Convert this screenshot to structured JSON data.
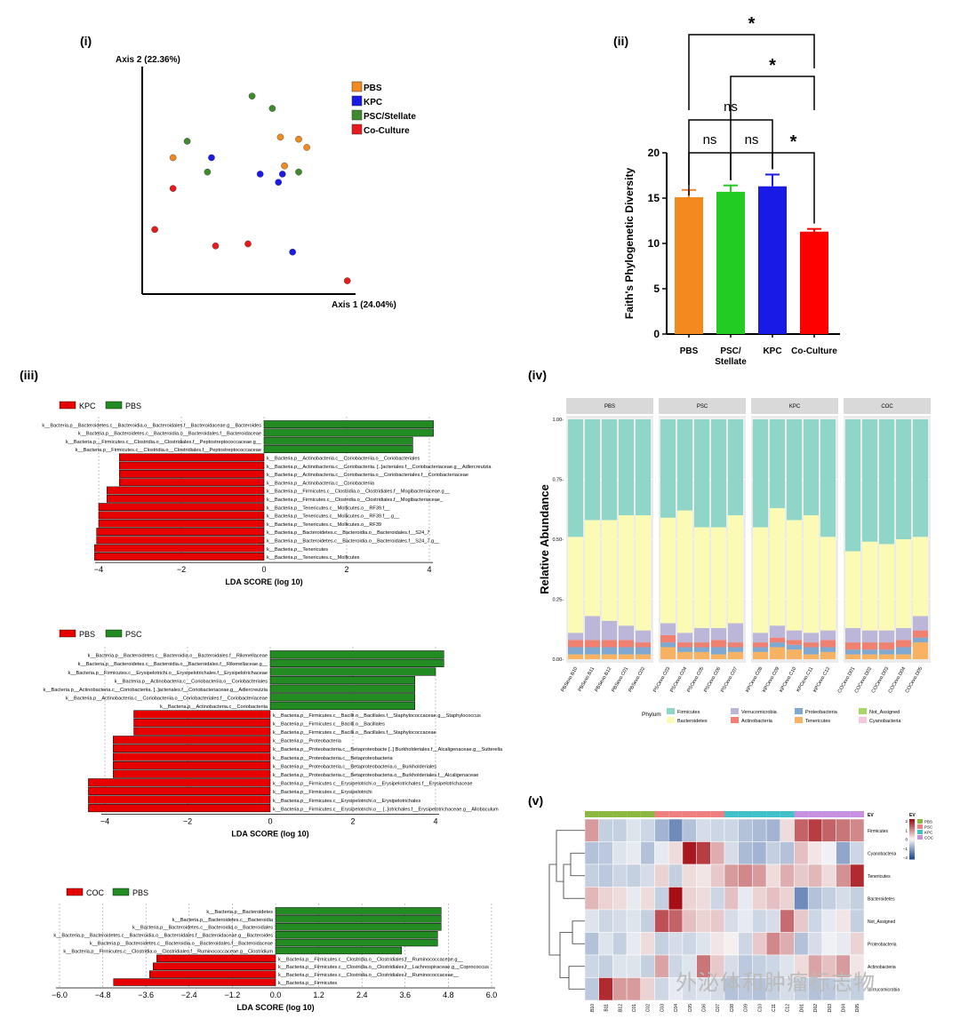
{
  "panels": {
    "i": "(i)",
    "ii": "(ii)",
    "iii": "(iii)",
    "iv": "(iv)",
    "v": "(v)"
  },
  "watermark": "外泌体和肿瘤标志物",
  "colors": {
    "PBS": "#f28a1f",
    "KPC": "#1a1ae6",
    "PSC": "#3f8a2a",
    "COC": "#e81a1a",
    "green": "#228b22",
    "red": "#e60000"
  },
  "chart_data": [
    {
      "id": "pcoa",
      "type": "scatter",
      "xlabel": "Axis 1 (24.04%)",
      "ylabel": "Axis 2 (22.36%)",
      "xlim": [
        0,
        100
      ],
      "ylim": [
        0,
        100
      ],
      "legend": [
        "PBS",
        "KPC",
        "PSC/Stellate",
        "Co-Culture"
      ],
      "legend_position": "right",
      "series": [
        {
          "name": "PBS",
          "points": [
            [
              13,
              63
            ],
            [
              66,
              73
            ],
            [
              75,
              72
            ],
            [
              79,
              68
            ],
            [
              68,
              59
            ]
          ]
        },
        {
          "name": "KPC",
          "points": [
            [
              32,
              63
            ],
            [
              56,
              55
            ],
            [
              65,
              51
            ],
            [
              67,
              55
            ],
            [
              72,
              17
            ]
          ]
        },
        {
          "name": "PSC/Stellate",
          "points": [
            [
              52,
              93
            ],
            [
              62,
              87
            ],
            [
              20,
              71
            ],
            [
              30,
              56
            ],
            [
              75,
              56
            ]
          ]
        },
        {
          "name": "Co-Culture",
          "points": [
            [
              13,
              48
            ],
            [
              4,
              28
            ],
            [
              34,
              20
            ],
            [
              50,
              21
            ],
            [
              99,
              3
            ]
          ]
        }
      ]
    },
    {
      "id": "faith",
      "type": "bar",
      "ylabel": "Faith's Phylogenetic Diversity",
      "ylim": [
        0,
        20
      ],
      "yticks": [
        0,
        5,
        10,
        15,
        20
      ],
      "categories": [
        "PBS",
        "PSC/\nStellate",
        "KPC",
        "Co-Culture"
      ],
      "category_lines": [
        [
          "PBS"
        ],
        [
          "PSC/",
          "Stellate"
        ],
        [
          "KPC"
        ],
        [
          "Co-Culture"
        ]
      ],
      "values": [
        15.1,
        15.7,
        16.3,
        11.3
      ],
      "errors": [
        0.8,
        0.7,
        1.3,
        0.3
      ],
      "significance": [
        {
          "from": 0,
          "to": 1,
          "label": "ns",
          "level": 1
        },
        {
          "from": 1,
          "to": 2,
          "label": "ns",
          "level": 1
        },
        {
          "from": 2,
          "to": 3,
          "label": "*",
          "level": 1
        },
        {
          "from": 0,
          "to": 2,
          "label": "ns",
          "level": 2
        },
        {
          "from": 1,
          "to": 3,
          "label": "*",
          "level": 3
        },
        {
          "from": 0,
          "to": 3,
          "label": "*",
          "level": 4
        }
      ]
    },
    {
      "id": "lefse1",
      "type": "bar",
      "legend": [
        "KPC",
        "PBS"
      ],
      "xlabel": "LDA SCORE (log 10)",
      "xlim": [
        -4.4,
        4.4
      ],
      "xticks": [
        -4,
        -2,
        0,
        2,
        4
      ],
      "bars": [
        {
          "label": "k__Bacteria.p__Bacteroidetes.c__Bacteroidia.o__Bacteroidales.f__Bacteroidaceae.g__Bacteroides",
          "value": 4.1
        },
        {
          "label": "k__Bacteria.p__Bacteroidetes.c__Bacteroidia.o__Bacteroidales.f__Bacteroidaceae",
          "value": 4.1
        },
        {
          "label": "k__Bacteria.p__Firmicutes.c__Clostridia.o__Clostridiales.f__Peptostreptococcaceae.g__",
          "value": 3.6
        },
        {
          "label": "k__Bacteria.p__Firmicutes.c__Clostridia.o__Clostridiales.f__Peptostreptococcaceae",
          "value": 3.6
        },
        {
          "label": "k__Bacteria.p__Actinobacteria.c__Coriobacteriia.o__Coriobacteriales",
          "value": -3.5
        },
        {
          "label": "k__Bacteria.p__Actinobacteria.c__Coriobacteriia. [..]acteriales.f__Coriobacteriaceae.g__Adlercreutzia",
          "value": -3.5
        },
        {
          "label": "k__Bacteria.p__Actinobacteria.c__Coriobacteriia.o__Coriobacteriales.f__Coriobacteriaceae",
          "value": -3.5
        },
        {
          "label": "k__Bacteria.p__Actinobacteria.c__Coriobacteriia",
          "value": -3.5
        },
        {
          "label": "k__Bacteria.p__Firmicutes.c__Clostridia.o__Clostridiales.f__Mogibacteriaceae.g__",
          "value": -3.8
        },
        {
          "label": "k__Bacteria.p__Firmicutes.c__Clostridia.o__Clostridiales.f__Mogibacteriaceae_",
          "value": -3.8
        },
        {
          "label": "k__Bacteria.p__Tenericutes.c__Mollicutes.o__RF39.f__",
          "value": -4.0
        },
        {
          "label": "k__Bacteria.p__Tenericutes.c__Mollicutes.o__RF39.f__.g__",
          "value": -4.0
        },
        {
          "label": "k__Bacteria.p__Tenericutes.c__Mollicutes.o__RF39",
          "value": -4.0
        },
        {
          "label": "k__Bacteria.p__Bacteroidetes.c__Bacteroidia.o__Bacteroidales.f__S24_7",
          "value": -4.05
        },
        {
          "label": "k__Bacteria.p__Bacteroidetes.c__Bacteroidia.o__Bacteroidales.f__S24_7.g__",
          "value": -4.05
        },
        {
          "label": "k__Bacteria.p__Tenericutes",
          "value": -4.1
        },
        {
          "label": "k__Bacteria.p__Tenericutes.c__Mollicutes",
          "value": -4.1
        }
      ]
    },
    {
      "id": "lefse2",
      "type": "bar",
      "legend": [
        "PBS",
        "PSC"
      ],
      "xlabel": "LDA SCORE (log 10)",
      "xlim": [
        -4.6,
        4.6
      ],
      "xticks": [
        -4,
        -2,
        0,
        2,
        4
      ],
      "bars": [
        {
          "label": "k__Bacteria.p__Bacteroidetes.c__Bacteroidia.o__Bacteroidales.f__Rikenellaceae",
          "value": 4.2
        },
        {
          "label": "k__Bacteria.p__Bacteroidetes.c__Bacteroidia.o__Bacteroidales.f__Rikenellaceae.g__",
          "value": 4.2
        },
        {
          "label": "k__Bacteria.p__Firmicutes.c__Erysipelotrichi.o__Erysipelotrichales.f__Erysipelotrichaceae",
          "value": 4.0
        },
        {
          "label": "k__Bacteria.p__Actinobacteria.c__Coriobacteriia.o__Coriobacteriales",
          "value": 3.5
        },
        {
          "label": "k__Bacteria.p__Actinobacteria.c__Coriobacteriia. [..]acteriales.f__Coriobacteriaceae.g__Adlercreutzia",
          "value": 3.5
        },
        {
          "label": "k__Bacteria.p__Actinobacteria.c__Coriobacteriia.o__Coriobacteriales.f__Coriobacteriaceae",
          "value": 3.5
        },
        {
          "label": "k__Bacteria.p__Actinobacteria.c__Coriobacteriia",
          "value": 3.5
        },
        {
          "label": "k__Bacteria.p__Firmicutes.c__Bacilli.o__Bacillales.f__Staphylococcaceae.g__Staphylococcus",
          "value": -3.3
        },
        {
          "label": "k__Bacteria.p__Firmicutes.c__Bacilli.o__Bacillales",
          "value": -3.3
        },
        {
          "label": "k__Bacteria.p__Firmicutes.c__Bacilli.o__Bacillales.f__Staphylococcaceae",
          "value": -3.3
        },
        {
          "label": "k__Bacteria.p__Proteobacteria",
          "value": -3.8
        },
        {
          "label": "k__Bacteria.p__Proteobacteria.c__Betaproteobacte [..] Burkholderiales.f__Alcaligenaceae.g__Sutterella",
          "value": -3.8
        },
        {
          "label": "k__Bacteria.p__Proteobacteria.c__Betaproteobacteria",
          "value": -3.8
        },
        {
          "label": "k__Bacteria.p__Proteobacteria.c__Betaproteobacteria.o__Burkholderiales",
          "value": -3.8
        },
        {
          "label": "k__Bacteria.p__Proteobacteria.c__Betaproteobacteria.o__Burkholderiales.f__Alcaligenaceae",
          "value": -3.8
        },
        {
          "label": "k__Bacteria.p__Firmicutes.c__Erysipelotrichi.o__Erysipelotrichales.f__Erysipelotrichaceae",
          "value": -4.4
        },
        {
          "label": "k__Bacteria.p__Firmicutes.c__Erysipelotrichi",
          "value": -4.4
        },
        {
          "label": "k__Bacteria.p__Firmicutes.c__Erysipelotrichi.o__Erysipelotrichales",
          "value": -4.4
        },
        {
          "label": "k__Bacteria.p__Firmicutes.c__Erysipelotrichi.o__ [..]otrichales.f__Erysipelotrichaceae.g__Allobaculum",
          "value": -4.4
        }
      ]
    },
    {
      "id": "lefse3",
      "type": "bar",
      "legend": [
        "COC",
        "PBS"
      ],
      "xlabel": "LDA SCORE (log 10)",
      "xlim": [
        -6.0,
        6.0
      ],
      "xticks": [
        -6.0,
        -4.8,
        -3.6,
        -2.4,
        -1.2,
        0.0,
        1.2,
        2.4,
        3.6,
        4.8,
        6.0
      ],
      "xtick_labels": [
        "−6.0",
        "−4.8",
        "−3.6",
        "−2.4",
        "−1.2",
        "0.0",
        "1.2",
        "2.4",
        "3.6",
        "4.8",
        "6.0"
      ],
      "bars": [
        {
          "label": "k__Bacteria.p__Bacteroidetes",
          "value": 4.6
        },
        {
          "label": "k__Bacteria.p__Bacteroidetes.c__Bacteroidia",
          "value": 4.6
        },
        {
          "label": "k__Bacteria.p__Bacteroidetes.c__Bacteroidia.o__Bacteroidales",
          "value": 4.6
        },
        {
          "label": "k__Bacteria.p__Bacteroidetes.c__Bacteroidia.o__Bacteroidales.f__Bacteroidaceae.g__Bacteroides",
          "value": 4.5
        },
        {
          "label": "k__Bacteria.p__Bacteroidetes.c__Bacteroidia.o__Bacteroidales.f__Bacteroidaceae",
          "value": 4.5
        },
        {
          "label": "k__Bacteria.p__Firmicutes.c__Clostridia.o__Clostridiales.f__Ruminococcaceae.g__Clostridium",
          "value": 3.5
        },
        {
          "label": "k__Bacteria.p__Firmicutes.c__Clostridia.o__Clostridiales.f__Ruminococcaceae.g__",
          "value": -3.3
        },
        {
          "label": "k__Bacteria.p__Firmicutes.c__Clostridia.o__Clostridiales.f__Lachnospiraceae.g__Coprococcus",
          "value": -3.4
        },
        {
          "label": "k__Bacteria.p__Firmicutes.c__Clostridia.o__Clostridiales.f__Ruminococcaceae__",
          "value": -3.5
        },
        {
          "label": "k__Bacteria.p__Firmicutes",
          "value": -4.5
        }
      ]
    },
    {
      "id": "abundance",
      "type": "bar",
      "stacked": true,
      "ylabel": "Relative Abundance",
      "ylim": [
        0,
        1
      ],
      "yticks": [
        0,
        0.25,
        0.5,
        0.75,
        1.0
      ],
      "ytick_labels": [
        "0.00-",
        "0.25-",
        "0.50-",
        "0.75-",
        "1.00-"
      ],
      "legend_title": "Phylum",
      "facets": [
        {
          "name": "PBS",
          "samples": [
            "PBSexo.B10",
            "PBSexo.B11",
            "PBSexo.B12",
            "PBSexo.C01",
            "PBSexo.C02"
          ]
        },
        {
          "name": "PSC",
          "samples": [
            "PSCexo.C03",
            "PSCexo.C04",
            "PSCexo.C05",
            "PSCexo.C06",
            "PSCexo.C07"
          ]
        },
        {
          "name": "KPC",
          "samples": [
            "KPCexo.C08",
            "KPCexo.C09",
            "KPCexo.C10",
            "KPCexo.C11",
            "KPCexo.C12"
          ]
        },
        {
          "name": "COC",
          "samples": [
            "COCexo.D01",
            "COCexo.D02",
            "COCexo.D03",
            "COCexo.D04",
            "COCexo.D05"
          ]
        }
      ],
      "phyla": [
        {
          "name": "Firmicutes",
          "color": "#8fd5c8"
        },
        {
          "name": "Bacteroidetes",
          "color": "#fbfbb5"
        },
        {
          "name": "Verrucomicrobia",
          "color": "#bcb7d8"
        },
        {
          "name": "Actinobacteria",
          "color": "#f08070"
        },
        {
          "name": "Proteobacteria",
          "color": "#7fa9d0"
        },
        {
          "name": "Tenericutes",
          "color": "#f8b262"
        },
        {
          "name": "Not_Assigned",
          "color": "#a8d66b"
        },
        {
          "name": "Cyanobacteria",
          "color": "#f5c6e0"
        }
      ],
      "stack_order": [
        "Tenericutes",
        "Proteobacteria",
        "Actinobacteria",
        "Verrucomicrobia",
        "Bacteroidetes",
        "Firmicutes"
      ],
      "values": [
        [
          0.02,
          0.03,
          0.03,
          0.03,
          0.4,
          0.49
        ],
        [
          0.02,
          0.03,
          0.03,
          0.1,
          0.4,
          0.42
        ],
        [
          0.02,
          0.03,
          0.03,
          0.08,
          0.42,
          0.42
        ],
        [
          0.02,
          0.03,
          0.03,
          0.06,
          0.46,
          0.4
        ],
        [
          0.02,
          0.03,
          0.02,
          0.05,
          0.48,
          0.4
        ],
        [
          0.05,
          0.02,
          0.03,
          0.05,
          0.44,
          0.41
        ],
        [
          0.03,
          0.02,
          0.02,
          0.04,
          0.51,
          0.38
        ],
        [
          0.03,
          0.02,
          0.02,
          0.06,
          0.42,
          0.45
        ],
        [
          0.02,
          0.03,
          0.03,
          0.05,
          0.42,
          0.45
        ],
        [
          0.03,
          0.02,
          0.02,
          0.08,
          0.45,
          0.4
        ],
        [
          0.03,
          0.02,
          0.02,
          0.04,
          0.44,
          0.45
        ],
        [
          0.05,
          0.02,
          0.02,
          0.05,
          0.49,
          0.37
        ],
        [
          0.04,
          0.02,
          0.02,
          0.04,
          0.46,
          0.42
        ],
        [
          0.02,
          0.03,
          0.02,
          0.04,
          0.49,
          0.4
        ],
        [
          0.03,
          0.02,
          0.03,
          0.04,
          0.39,
          0.49
        ],
        [
          0.02,
          0.02,
          0.03,
          0.06,
          0.32,
          0.55
        ],
        [
          0.02,
          0.02,
          0.03,
          0.05,
          0.37,
          0.51
        ],
        [
          0.02,
          0.02,
          0.03,
          0.05,
          0.36,
          0.52
        ],
        [
          0.02,
          0.03,
          0.03,
          0.05,
          0.37,
          0.5
        ],
        [
          0.07,
          0.02,
          0.03,
          0.06,
          0.33,
          0.49
        ]
      ]
    },
    {
      "id": "heatmap",
      "type": "heatmap",
      "annotation_title": "EV",
      "groups": [
        {
          "name": "PBS",
          "color": "#8ab840"
        },
        {
          "name": "PSC",
          "color": "#f08080"
        },
        {
          "name": "KPC",
          "color": "#40c0c8"
        },
        {
          "name": "COC",
          "color": "#c890e0"
        }
      ],
      "column_groups": [
        "PBS",
        "PBS",
        "PBS",
        "PBS",
        "PBS",
        "PSC",
        "PSC",
        "PSC",
        "PSC",
        "PSC",
        "KPC",
        "KPC",
        "KPC",
        "KPC",
        "KPC",
        "COC",
        "COC",
        "COC",
        "COC",
        "COC"
      ],
      "columns": [
        "PBSexo.B10",
        "PBSexo.B11",
        "PBSexo.B12",
        "PBSexo.C01",
        "PBSexo.C02",
        "PSCexo.C03",
        "PSCexo.C04",
        "PSCexo.C05",
        "PSCexo.C06",
        "PSCexo.C07",
        "KPCexo.C08",
        "KPCexo.C09",
        "KPCexo.C10",
        "KPCexo.C11",
        "KPCexo.C12",
        "COCexo.D01",
        "COCexo.D02",
        "COCexo.D03",
        "COCexo.D04",
        "COCexo.D05"
      ],
      "rows": [
        "Firmicutes",
        "Cyanobacteria",
        "Tenericutes",
        "Bacteroidetes",
        "Not_Assigned",
        "Proteobacteria",
        "Actinobacteria",
        "Verrucomicrobia"
      ],
      "scale": [
        -2,
        2
      ],
      "scale_ticks": [
        2,
        1,
        0,
        -1,
        -2
      ],
      "values": [
        [
          1.0,
          -0.6,
          -0.6,
          -0.3,
          -0.5,
          -1.0,
          -1.6,
          -0.8,
          -0.4,
          -0.5,
          -0.5,
          -0.8,
          -0.9,
          -1.0,
          0.3,
          1.6,
          2.0,
          1.6,
          1.4,
          1.2
        ],
        [
          -0.8,
          -0.7,
          -0.3,
          -0.2,
          -0.8,
          -0.2,
          0.3,
          2.4,
          2.0,
          0.8,
          -0.4,
          -0.9,
          -1.0,
          -0.6,
          -0.8,
          0.6,
          0.2,
          -0.1,
          -1.2,
          -0.5
        ],
        [
          -0.6,
          -0.7,
          -0.5,
          -0.6,
          -0.4,
          0.4,
          -0.6,
          0.3,
          0.2,
          0.5,
          1.0,
          1.2,
          1.0,
          0.3,
          0.8,
          0.5,
          0.7,
          0.3,
          1.1,
          2.2
        ],
        [
          0.7,
          0.4,
          0.3,
          -0.2,
          0.3,
          -0.6,
          2.6,
          0.4,
          0.3,
          -0.5,
          0.6,
          -0.2,
          0.4,
          0.6,
          0.4,
          -1.6,
          -0.8,
          -0.6,
          -0.4,
          -0.6
        ],
        [
          -0.3,
          -0.5,
          -0.4,
          -0.3,
          -0.6,
          1.8,
          1.6,
          0.6,
          0.4,
          0.5,
          -0.4,
          -0.2,
          -0.5,
          -0.4,
          1.5,
          0.5,
          -0.5,
          -0.2,
          0.2,
          -0.6
        ],
        [
          -0.8,
          -0.3,
          -0.6,
          -0.2,
          0.3,
          -0.6,
          -0.4,
          -0.5,
          -0.3,
          0.2,
          0.1,
          -0.5,
          0.5,
          1.2,
          0.8,
          -0.8,
          -0.4,
          -0.1,
          -0.2,
          0.4
        ],
        [
          -0.5,
          -0.6,
          -0.3,
          -0.3,
          -0.6,
          0.9,
          -0.5,
          -0.3,
          1.4,
          0.5,
          -0.4,
          -0.7,
          -0.6,
          -0.5,
          -0.3,
          0.3,
          0.9,
          0.6,
          1.0,
          0.2
        ],
        [
          -0.7,
          2.2,
          1.0,
          1.0,
          0.4,
          -0.5,
          -0.2,
          -0.4,
          -0.3,
          -0.4,
          -0.8,
          -0.7,
          -0.8,
          -0.6,
          -0.4,
          -0.6,
          -0.8,
          -0.7,
          -0.5,
          -0.6
        ]
      ]
    }
  ]
}
